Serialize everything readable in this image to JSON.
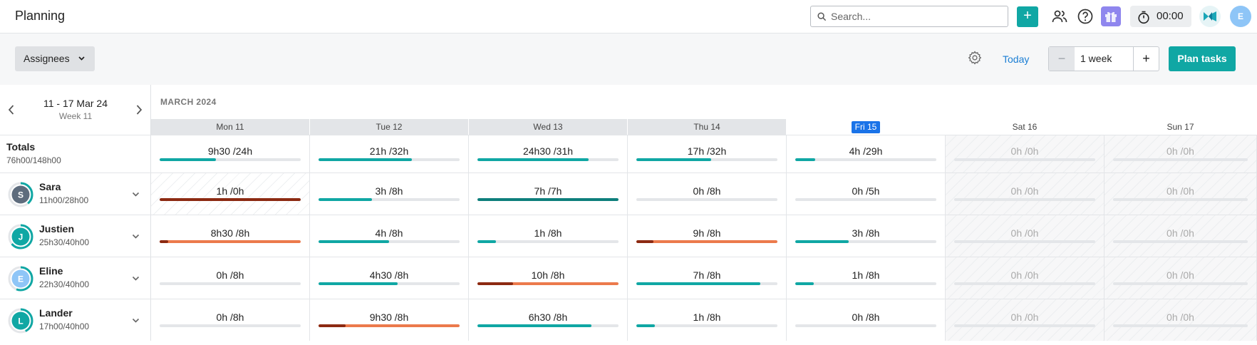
{
  "header": {
    "title": "Planning",
    "search_placeholder": "Search...",
    "add_label": "+",
    "timer": "00:00",
    "user_initial": "E"
  },
  "toolbar": {
    "assignees_label": "Assignees",
    "today_label": "Today",
    "minus_label": "−",
    "range_value": "1 week",
    "plus_label": "+",
    "plan_label": "Plan tasks"
  },
  "calendar": {
    "week_range": "11 - 17 Mar 24",
    "week_label": "Week 11",
    "month": "MARCH 2024",
    "days": [
      "Mon 11",
      "Tue 12",
      "Wed 13",
      "Thu 14",
      "Fri 15",
      "Sat 16",
      "Sun 17"
    ],
    "today_index": 4
  },
  "totals": {
    "label": "Totals",
    "hours": "76h00/148h00",
    "cells": [
      {
        "text": "9h30 /24h",
        "ratio": 0.4,
        "color": "teal"
      },
      {
        "text": "21h /32h",
        "ratio": 0.66,
        "color": "teal"
      },
      {
        "text": "24h30 /31h",
        "ratio": 0.79,
        "color": "teal"
      },
      {
        "text": "17h /32h",
        "ratio": 0.53,
        "color": "teal"
      },
      {
        "text": "4h /29h",
        "ratio": 0.14,
        "color": "teal"
      },
      {
        "text": "0h /0h",
        "ratio": 0,
        "color": "teal"
      },
      {
        "text": "0h /0h",
        "ratio": 0,
        "color": "teal"
      }
    ]
  },
  "people": [
    {
      "name": "Sara",
      "initial": "S",
      "hours": "11h00/28h00",
      "avatar_color": "#5e6c7d",
      "ring_color": "#10a7a4",
      "ring_ratio": 0.39,
      "cells": [
        {
          "text": "1h /0h",
          "ratio": 1,
          "color": "maroon",
          "over": true
        },
        {
          "text": "3h /8h",
          "ratio": 0.38,
          "color": "teal"
        },
        {
          "text": "7h /7h",
          "ratio": 1,
          "color": "dark"
        },
        {
          "text": "0h /8h",
          "ratio": 0,
          "color": "teal"
        },
        {
          "text": "0h /5h",
          "ratio": 0,
          "color": "teal"
        },
        {
          "text": "0h /0h",
          "ratio": 0,
          "color": "teal"
        },
        {
          "text": "0h /0h",
          "ratio": 0,
          "color": "teal"
        }
      ]
    },
    {
      "name": "Justien",
      "initial": "J",
      "hours": "25h30/40h00",
      "avatar_color": "#10a7a4",
      "ring_color": "#10a7a4",
      "ring_ratio": 0.64,
      "cells": [
        {
          "text": "8h30 /8h",
          "ratio": 1,
          "color": "orange",
          "excess": 0.06
        },
        {
          "text": "4h /8h",
          "ratio": 0.5,
          "color": "teal"
        },
        {
          "text": "1h /8h",
          "ratio": 0.13,
          "color": "teal"
        },
        {
          "text": "9h /8h",
          "ratio": 1,
          "color": "orange",
          "excess": 0.12
        },
        {
          "text": "3h /8h",
          "ratio": 0.38,
          "color": "teal"
        },
        {
          "text": "0h /0h",
          "ratio": 0,
          "color": "teal"
        },
        {
          "text": "0h /0h",
          "ratio": 0,
          "color": "teal"
        }
      ]
    },
    {
      "name": "Eline",
      "initial": "E",
      "hours": "22h30/40h00",
      "avatar_color": "#8ec5f7",
      "ring_color": "#10a7a4",
      "ring_ratio": 0.56,
      "cells": [
        {
          "text": "0h /8h",
          "ratio": 0,
          "color": "teal"
        },
        {
          "text": "4h30 /8h",
          "ratio": 0.56,
          "color": "teal"
        },
        {
          "text": "10h /8h",
          "ratio": 1,
          "color": "orange",
          "excess": 0.25
        },
        {
          "text": "7h /8h",
          "ratio": 0.88,
          "color": "teal"
        },
        {
          "text": "1h /8h",
          "ratio": 0.13,
          "color": "teal"
        },
        {
          "text": "0h /0h",
          "ratio": 0,
          "color": "teal"
        },
        {
          "text": "0h /0h",
          "ratio": 0,
          "color": "teal"
        }
      ]
    },
    {
      "name": "Lander",
      "initial": "L",
      "hours": "17h00/40h00",
      "avatar_color": "#10a7a4",
      "ring_color": "#10a7a4",
      "ring_ratio": 0.43,
      "cells": [
        {
          "text": "0h /8h",
          "ratio": 0,
          "color": "teal"
        },
        {
          "text": "9h30 /8h",
          "ratio": 1,
          "color": "orange",
          "excess": 0.19
        },
        {
          "text": "6h30 /8h",
          "ratio": 0.81,
          "color": "teal"
        },
        {
          "text": "1h /8h",
          "ratio": 0.13,
          "color": "teal"
        },
        {
          "text": "0h /8h",
          "ratio": 0,
          "color": "teal"
        },
        {
          "text": "0h /0h",
          "ratio": 0,
          "color": "teal"
        },
        {
          "text": "0h /0h",
          "ratio": 0,
          "color": "teal"
        }
      ]
    }
  ]
}
